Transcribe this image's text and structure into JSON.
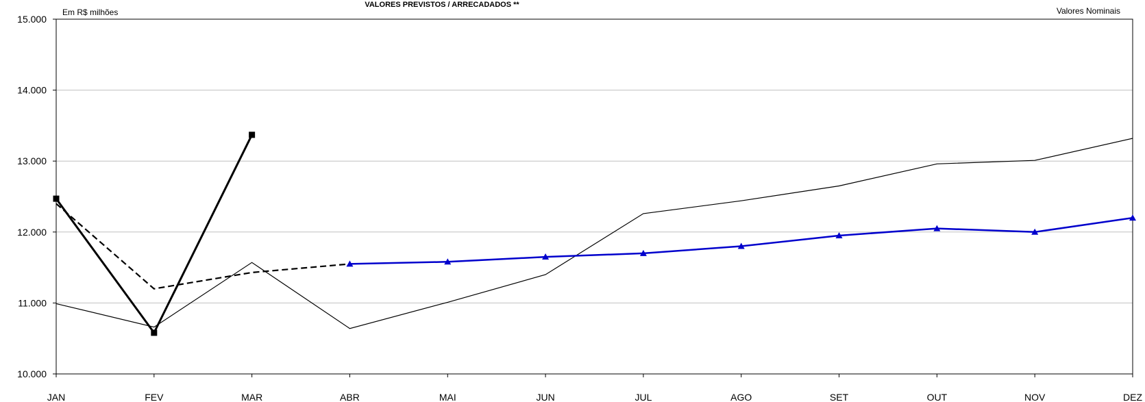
{
  "header": {
    "title": "VALORES PREVISTOS / ARRECADADOS **",
    "unit_note": "Em R$ milhões",
    "value_note": "Valores Nominais"
  },
  "chart_data": {
    "type": "line",
    "title": "VALORES PREVISTOS / ARRECADADOS **",
    "xlabel": "",
    "ylabel": "",
    "categories": [
      "JAN",
      "FEV",
      "MAR",
      "ABR",
      "MAI",
      "JUN",
      "JUL",
      "AGO",
      "SET",
      "OUT",
      "NOV",
      "DEZ"
    ],
    "ylim": [
      10000,
      15000
    ],
    "yticks": [
      10000,
      11000,
      12000,
      13000,
      14000,
      15000
    ],
    "ytick_labels": [
      "10.000",
      "11.000",
      "12.000",
      "13.000",
      "14.000",
      "15.000"
    ],
    "grid": true,
    "series": [
      {
        "style": "thin-black",
        "color": "#000000",
        "values": [
          10990,
          10660,
          11570,
          10640,
          11010,
          11400,
          12260,
          12440,
          12650,
          12960,
          13010,
          13320
        ]
      },
      {
        "style": "thick-black-square-markers",
        "color": "#000000",
        "values": [
          12470,
          10580,
          13370,
          null,
          null,
          null,
          null,
          null,
          null,
          null,
          null,
          null
        ]
      },
      {
        "style": "dashed-black",
        "color": "#000000",
        "values": [
          12400,
          11200,
          11430,
          11550,
          null,
          null,
          null,
          null,
          null,
          null,
          null,
          null
        ]
      },
      {
        "style": "blue-triangle-markers",
        "color": "#0000cc",
        "values": [
          null,
          null,
          null,
          11550,
          11580,
          11650,
          11700,
          11800,
          11950,
          12050,
          12000,
          12200
        ]
      }
    ]
  }
}
